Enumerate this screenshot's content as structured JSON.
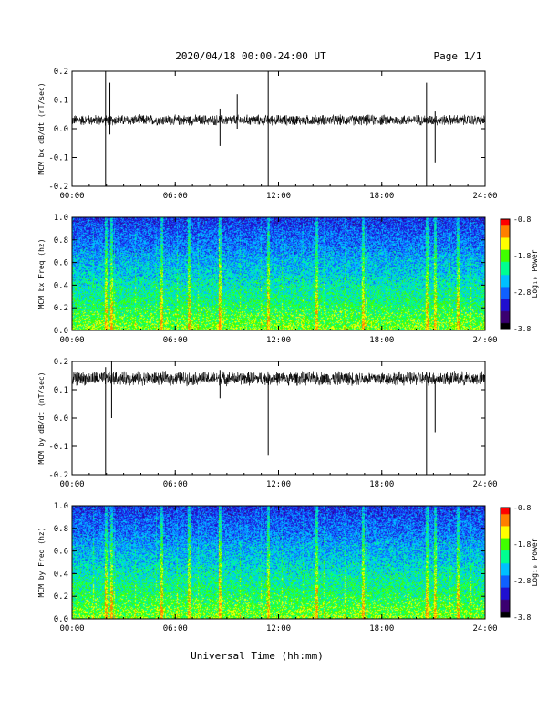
{
  "header": {
    "title": "2020/04/18  00:00-24:00 UT",
    "page": "Page 1/1"
  },
  "xlabel": "Universal Time (hh:mm)",
  "colorbar": {
    "label": "Log₁₀ Power",
    "ticks": [
      "-0.8",
      "-1.8",
      "-2.8",
      "-3.8"
    ],
    "colors": [
      "#000000",
      "#3a0070",
      "#2010d0",
      "#1060ff",
      "#00c0ff",
      "#00ff90",
      "#40ff00",
      "#ffff00",
      "#ff8000",
      "#ff0000"
    ]
  },
  "chart_data": [
    {
      "type": "line",
      "ylabel": "MCM bx dB/dt (nT/sec)",
      "xlim": [
        0,
        24
      ],
      "ylim": [
        -0.2,
        0.2
      ],
      "xticks": [
        "00:00",
        "06:00",
        "12:00",
        "18:00",
        "24:00"
      ],
      "yticks": [
        "0.2",
        "0.1",
        "0.0",
        "-0.1",
        "-0.2"
      ],
      "baseline": 0.03,
      "noise_amplitude": 0.015,
      "spikes": [
        {
          "x": 1.95,
          "min": -0.2,
          "max": 0.2
        },
        {
          "x": 11.4,
          "min": -0.2,
          "max": 0.2
        },
        {
          "x": 20.6,
          "min": -0.2,
          "max": 0.16
        },
        {
          "x": 21.1,
          "min": -0.12,
          "max": 0.06
        },
        {
          "x": 2.2,
          "min": -0.02,
          "max": 0.16
        },
        {
          "x": 8.6,
          "min": -0.06,
          "max": 0.07
        },
        {
          "x": 9.6,
          "min": 0.0,
          "max": 0.12
        }
      ]
    },
    {
      "type": "heatmap",
      "ylabel": "MCM bx Freq (hz)",
      "xlim": [
        0,
        24
      ],
      "ylim": [
        0,
        1
      ],
      "xticks": [
        "00:00",
        "06:00",
        "12:00",
        "18:00",
        "24:00"
      ],
      "yticks": [
        "1.0",
        "0.8",
        "0.6",
        "0.4",
        "0.2",
        "0.0"
      ],
      "zlim": [
        -3.8,
        -0.8
      ]
    },
    {
      "type": "line",
      "ylabel": "MCM by dB/dt (nT/sec)",
      "xlim": [
        0,
        24
      ],
      "ylim": [
        -0.2,
        0.2
      ],
      "xticks": [
        "00:00",
        "06:00",
        "12:00",
        "18:00",
        "24:00"
      ],
      "yticks": [
        "0.2",
        "0.1",
        "0.0",
        "-0.1",
        "-0.2"
      ],
      "baseline": 0.14,
      "noise_amplitude": 0.02,
      "spikes": [
        {
          "x": 1.95,
          "min": -0.2,
          "max": 0.18
        },
        {
          "x": 11.4,
          "min": -0.13,
          "max": 0.14
        },
        {
          "x": 20.6,
          "min": -0.2,
          "max": 0.16
        },
        {
          "x": 21.1,
          "min": -0.05,
          "max": 0.14
        },
        {
          "x": 2.3,
          "min": 0.0,
          "max": 0.2
        },
        {
          "x": 8.6,
          "min": 0.07,
          "max": 0.17
        }
      ]
    },
    {
      "type": "heatmap",
      "ylabel": "MCM by Freq (hz)",
      "xlim": [
        0,
        24
      ],
      "ylim": [
        0,
        1
      ],
      "xticks": [
        "00:00",
        "06:00",
        "12:00",
        "18:00",
        "24:00"
      ],
      "yticks": [
        "1.0",
        "0.8",
        "0.6",
        "0.4",
        "0.2",
        "0.0"
      ],
      "zlim": [
        -3.8,
        -0.8
      ]
    }
  ]
}
